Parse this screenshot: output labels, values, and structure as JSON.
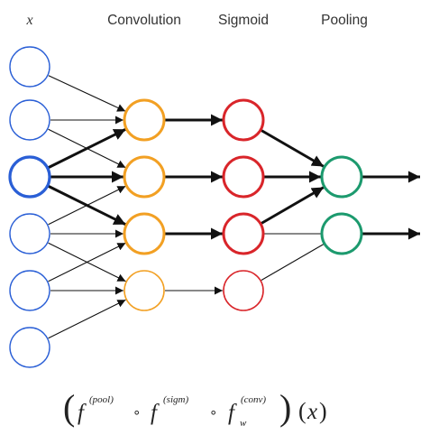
{
  "headers": {
    "input": "x",
    "convolution": "Convolution",
    "sigmoid": "Sigmoid",
    "pooling": "Pooling"
  },
  "colors": {
    "input_node": "#2a5fd6",
    "convolution_node": "#f2a023",
    "sigmoid_node": "#d9252a",
    "pooling_node": "#1c9a6e",
    "edge": "#111111"
  },
  "formula": {
    "paren_open": "(",
    "pool_f": "f",
    "pool_sup": "(pool)",
    "compose_1": "∘",
    "sigm_f": "f",
    "sigm_sup": "(sigm)",
    "compose_2": "∘",
    "conv_f": "f",
    "conv_sup": "(conv)",
    "conv_sub": "w",
    "paren_close": ")",
    "arg_open": "(",
    "arg": "x",
    "arg_close": ")"
  },
  "layers": [
    {
      "name": "input",
      "node_count": 6,
      "highlighted_node": 3
    },
    {
      "name": "convolution",
      "node_count": 4
    },
    {
      "name": "sigmoid",
      "node_count": 4
    },
    {
      "name": "pooling",
      "node_count": 2
    }
  ],
  "connections": {
    "input_to_convolution": [
      {
        "from": 1,
        "to": 1,
        "bold": false
      },
      {
        "from": 2,
        "to": 1,
        "bold": false
      },
      {
        "from": 2,
        "to": 2,
        "bold": false
      },
      {
        "from": 3,
        "to": 1,
        "bold": true
      },
      {
        "from": 3,
        "to": 2,
        "bold": true
      },
      {
        "from": 3,
        "to": 3,
        "bold": true
      },
      {
        "from": 4,
        "to": 2,
        "bold": false
      },
      {
        "from": 4,
        "to": 3,
        "bold": false
      },
      {
        "from": 4,
        "to": 4,
        "bold": false
      },
      {
        "from": 5,
        "to": 3,
        "bold": false
      },
      {
        "from": 5,
        "to": 4,
        "bold": false
      },
      {
        "from": 6,
        "to": 4,
        "bold": false
      }
    ],
    "convolution_to_sigmoid": [
      {
        "from": 1,
        "to": 1,
        "bold": true
      },
      {
        "from": 2,
        "to": 2,
        "bold": true
      },
      {
        "from": 3,
        "to": 3,
        "bold": true
      },
      {
        "from": 4,
        "to": 4,
        "bold": false
      }
    ],
    "sigmoid_to_pooling": [
      {
        "from": 1,
        "to": 1,
        "bold": true
      },
      {
        "from": 2,
        "to": 1,
        "bold": true
      },
      {
        "from": 3,
        "to": 1,
        "bold": true
      },
      {
        "from": 3,
        "to": 2,
        "bold": false
      },
      {
        "from": 4,
        "to": 2,
        "bold": false
      }
    ],
    "pooling_outputs": [
      {
        "from": 1,
        "bold": true
      },
      {
        "from": 2,
        "bold": true
      }
    ]
  }
}
